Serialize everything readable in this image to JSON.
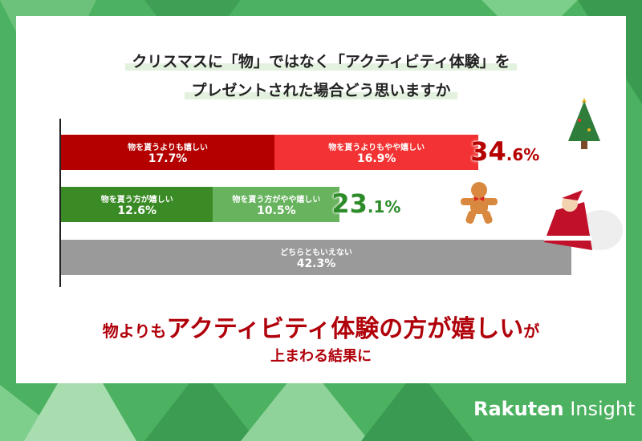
{
  "title": {
    "line1": "クリスマスに「物」ではなく「アクティビティ体験」を",
    "line2": "プレゼントされた場合どう思いますか"
  },
  "chart_data": {
    "type": "bar",
    "stacked": true,
    "orientation": "horizontal",
    "xlim": [
      0,
      42.3
    ],
    "rows": [
      {
        "segments": [
          {
            "label": "物を貰うよりも嬉しい",
            "value": 17.7,
            "display": "17.7%",
            "color": "#b50000"
          },
          {
            "label": "物を貰うよりもやや嬉しい",
            "value": 16.9,
            "display": "16.9%",
            "color": "#f33333"
          }
        ],
        "total_int": "34",
        "total_dec": ".6%",
        "total_color": "#b50000"
      },
      {
        "segments": [
          {
            "label": "物を貰う方が嬉しい",
            "value": 12.6,
            "display": "12.6%",
            "color": "#3a8a25"
          },
          {
            "label": "物を貰う方がやや嬉しい",
            "value": 10.5,
            "display": "10.5%",
            "color": "#68b35e"
          }
        ],
        "total_int": "23",
        "total_dec": ".1%",
        "total_color": "#2e8b2a"
      },
      {
        "segments": [
          {
            "label": "どちらともいえない",
            "value": 42.3,
            "display": "42.3%",
            "color": "#9a9a9a"
          }
        ]
      }
    ]
  },
  "conclusion": {
    "a": "物よりも",
    "b": "アクティビティ体験の方が嬉しい",
    "c": "が",
    "line2": "上まわる結果に"
  },
  "logo": {
    "bold": "Rakuten",
    "light": "Insight"
  }
}
